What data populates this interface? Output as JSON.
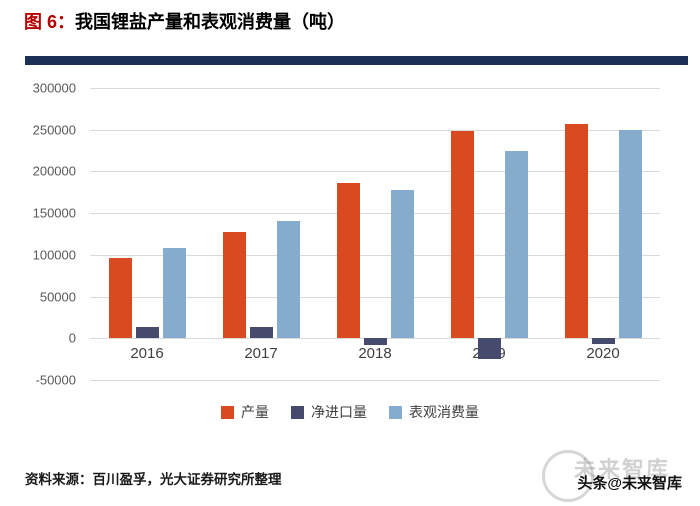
{
  "header": {
    "figure_label": "图 6：",
    "title": "我国锂盐产量和表观消费量（吨）"
  },
  "chart_data": {
    "type": "bar",
    "title": "图 6：我国锂盐产量和表观消费量（吨）",
    "categories": [
      "2016",
      "2017",
      "2018",
      "2019",
      "2020"
    ],
    "series": [
      {
        "name": "产量",
        "key": "production",
        "color": "#d94a21",
        "values": [
          96000,
          127000,
          186000,
          248000,
          257000
        ]
      },
      {
        "name": "净进口量",
        "key": "net-imports",
        "color": "#464b6d",
        "values": [
          13000,
          13000,
          -8000,
          -25000,
          -7000
        ]
      },
      {
        "name": "表观消费量",
        "key": "apparent-consumption",
        "color": "#86accd",
        "values": [
          108000,
          140000,
          178000,
          224000,
          250000
        ]
      }
    ],
    "xlabel": "",
    "ylabel": "",
    "ylim": [
      -50000,
      300000
    ],
    "ytick_step": 50000,
    "grid": true,
    "legend_position": "bottom"
  },
  "footer": {
    "source": "资料来源：百川盈孚，光大证券研究所整理",
    "watermark": "头条@未来智库",
    "watermark_bg": "未来智库"
  },
  "colors": {
    "divider": "#1c2f55",
    "grid": "#d9d9d9",
    "tick_label": "#595959"
  }
}
